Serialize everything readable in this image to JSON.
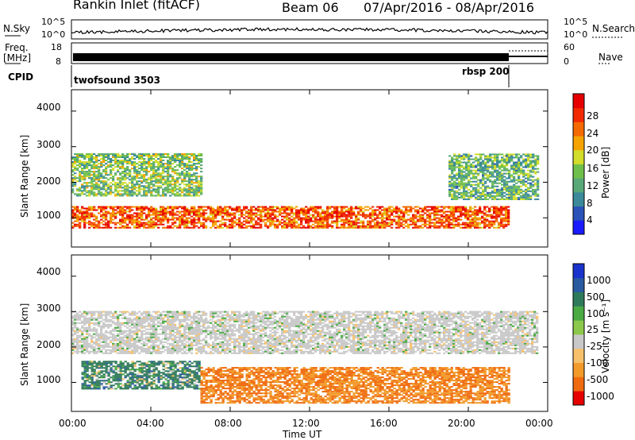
{
  "header": {
    "station": "Rankin Inlet (fitACF)",
    "beam": "Beam 06",
    "date_range": "07/Apr/2016 - 08/Apr/2016"
  },
  "strip_nsky": {
    "left_label": "N.Sky",
    "left_ticks": [
      "10^5",
      "10^0"
    ],
    "right_label": "N.Search",
    "right_ticks": [
      "10^5",
      "10^0"
    ]
  },
  "strip_freq": {
    "left_label_1": "Freq.",
    "left_label_2": "[MHz]",
    "left_ticks": [
      "18",
      "8"
    ],
    "right_label": "Nave",
    "right_ticks": [
      "60",
      "0"
    ]
  },
  "cpid": {
    "label": "CPID",
    "program_1": "twofsound 3503",
    "program_2": "rbsp 200"
  },
  "colors": {
    "power_scale": [
      "#1a1aff",
      "#2a52b8",
      "#3a8a9a",
      "#58a878",
      "#6fc04a",
      "#d2dc2a",
      "#f5a300",
      "#f56a00",
      "#f22a00",
      "#e60000"
    ],
    "velocity_scale": [
      "#1a33cc",
      "#2a5aa0",
      "#2f7a5a",
      "#4aaa44",
      "#8cc84a",
      "#c8c8c8",
      "#f7c06a",
      "#f29a2a",
      "#f06a10",
      "#e60000"
    ]
  },
  "chart_data": [
    {
      "type": "heatmap",
      "panel": "power",
      "ylabel": "Slant Range [km]",
      "yticks": [
        "4000",
        "3000",
        "2000",
        "1000"
      ],
      "ylim": [
        180,
        4600
      ],
      "colorbar_label": "Power [dB]",
      "colorbar_ticks": [
        "28",
        "24",
        "20",
        "16",
        "12",
        "8",
        "4"
      ],
      "colorbar_range": [
        0,
        32
      ],
      "x_range_hours": [
        0,
        24
      ],
      "features": [
        {
          "name": "low-range band",
          "t_start": 0.0,
          "t_end": 22.0,
          "range_km": [
            700,
            1300
          ],
          "value_db": 26
        },
        {
          "name": "mid-range band",
          "t_start": 0.0,
          "t_end": 6.5,
          "range_km": [
            1600,
            2800
          ],
          "value_db": 14
        },
        {
          "name": "far-range band",
          "t_start": 19.0,
          "t_end": 23.5,
          "range_km": [
            1500,
            2800
          ],
          "value_db": 12
        }
      ]
    },
    {
      "type": "heatmap",
      "panel": "velocity",
      "ylabel": "Slant Range [km]",
      "yticks": [
        "4000",
        "3000",
        "2000",
        "1000"
      ],
      "ylim": [
        180,
        4600
      ],
      "colorbar_label": "Velocity [m s⁻¹]",
      "colorbar_ticks": [
        "1000",
        "500",
        "100",
        "25",
        "-25",
        "-100",
        "-500",
        "-1000"
      ],
      "x_range_hours": [
        0,
        24
      ],
      "features": [
        {
          "name": "ground scatter",
          "t_start": 0.0,
          "t_end": 23.5,
          "range_km": [
            1800,
            3000
          ],
          "value_ms": 0
        },
        {
          "name": "positive velocities",
          "t_start": 0.5,
          "t_end": 6.5,
          "range_km": [
            800,
            1600
          ],
          "value_ms": 150
        },
        {
          "name": "negative velocities",
          "t_start": 6.5,
          "t_end": 22.0,
          "range_km": [
            400,
            1400
          ],
          "value_ms": -300
        }
      ]
    }
  ],
  "time_axis": {
    "ticks": [
      "00:00",
      "04:00",
      "08:00",
      "12:00",
      "16:00",
      "20:00",
      "00:00"
    ],
    "label": "Time UT"
  }
}
